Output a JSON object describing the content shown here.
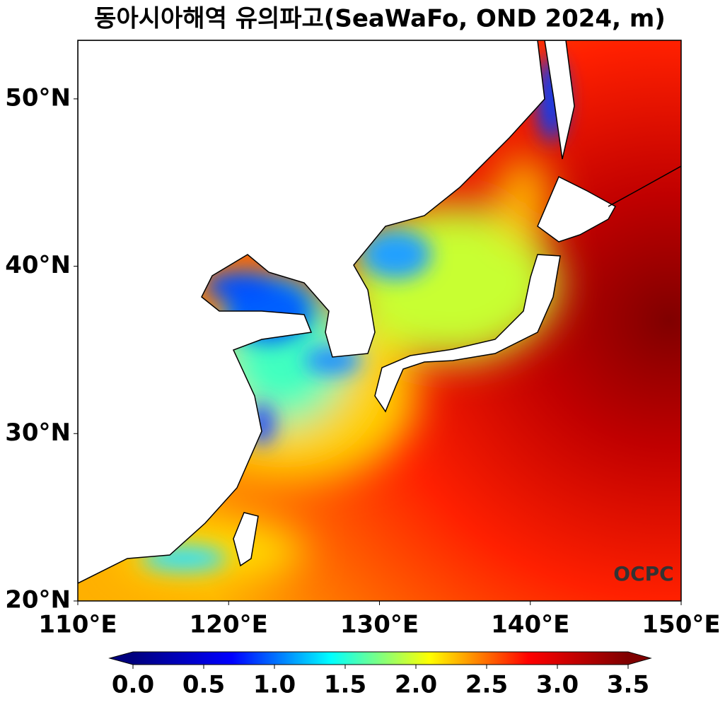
{
  "chart_data": {
    "type": "map",
    "title": "동아시아해역 유의파고(SeaWaFo, OND 2024, m)",
    "xlim": [
      110,
      150
    ],
    "ylim": [
      20,
      53.5
    ],
    "xticks": [
      {
        "value": 110,
        "label": "110°E"
      },
      {
        "value": 120,
        "label": "120°E"
      },
      {
        "value": 130,
        "label": "130°E"
      },
      {
        "value": 140,
        "label": "140°E"
      },
      {
        "value": 150,
        "label": "150°E"
      }
    ],
    "yticks": [
      {
        "value": 20,
        "label": "20°N"
      },
      {
        "value": 30,
        "label": "30°N"
      },
      {
        "value": 40,
        "label": "40°N"
      },
      {
        "value": 50,
        "label": "50°N"
      }
    ],
    "colorbar": {
      "colors": [
        "#00007f",
        "#0000ff",
        "#00ffff",
        "#ffff00",
        "#ff0000",
        "#7f0000"
      ],
      "lim": [
        0,
        3.5
      ],
      "ticks": [
        {
          "value": 0,
          "label": "0.0"
        },
        {
          "value": 0.5,
          "label": "0.5"
        },
        {
          "value": 1,
          "label": "1.0"
        },
        {
          "value": 1.5,
          "label": "1.5"
        },
        {
          "value": 2,
          "label": "2.0"
        },
        {
          "value": 2.5,
          "label": "2.5"
        },
        {
          "value": 3,
          "label": "3.0"
        },
        {
          "value": 3.5,
          "label": "3.5"
        }
      ]
    },
    "logo": "OCPC"
  }
}
